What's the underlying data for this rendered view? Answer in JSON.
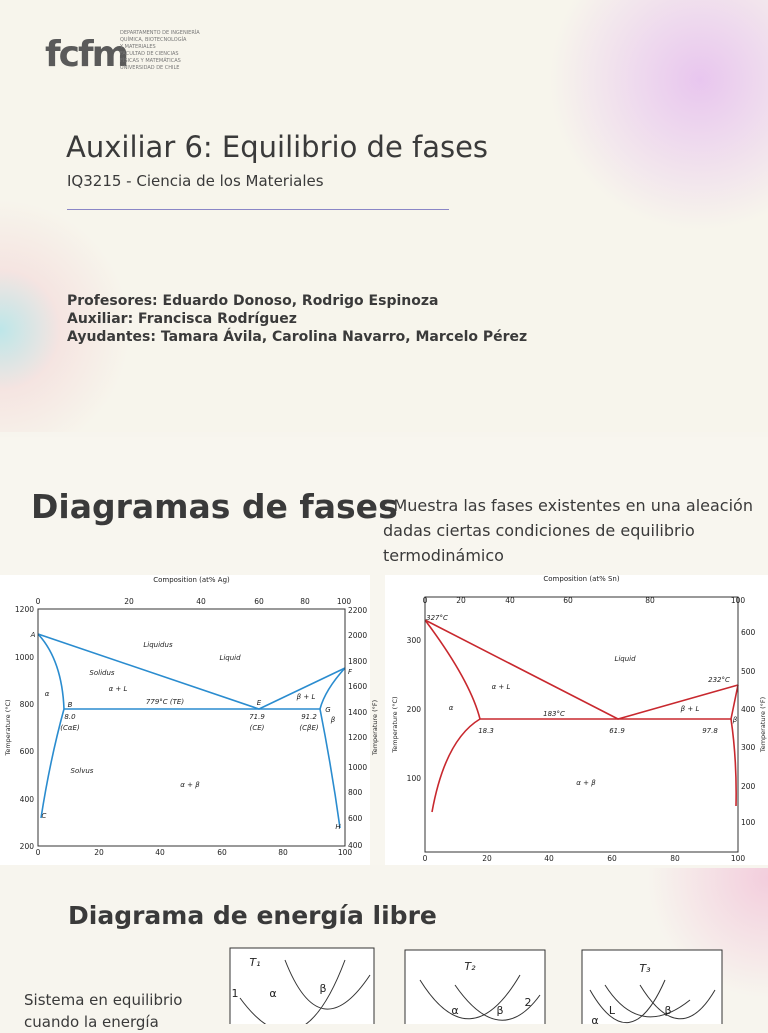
{
  "slide1": {
    "logo": "fcfm",
    "logo_lines": [
      "DEPARTAMENTO DE INGENIERÍA",
      "QUÍMICA, BIOTECNOLOGÍA",
      "Y MATERIALES",
      "FACULTAD DE CIENCIAS",
      "FÍSICAS Y MATEMÁTICAS",
      "UNIVERSIDAD DE CHILE"
    ],
    "title": "Auxiliar 6: Equilibrio de fases",
    "subtitle": "IQ3215 - Ciencia de los Materiales",
    "staff": [
      "Profesores: Eduardo Donoso, Rodrigo Espinoza",
      "Auxiliar: Francisca Rodríguez",
      "Ayudantes: Tamara Ávila, Carolina Navarro, Marcelo Pérez"
    ]
  },
  "slide2": {
    "title": "Diagramas de fases",
    "description": ": Muestra las fases existentes en una aleación dadas ciertas condiciones de equilibrio termodinámico",
    "diagrams": [
      {
        "top_axis": "Composition (at% Ag)",
        "top_ticks": [
          "0",
          "20",
          "40",
          "60",
          "80",
          "100"
        ],
        "bottom_ticks": [
          "0",
          "20",
          "40",
          "60",
          "80",
          "100"
        ],
        "left_axis": "Temperature (°C)",
        "left_ticks": [
          "1200",
          "1000",
          "800",
          "600",
          "400",
          "200"
        ],
        "right_axis": "Temperature (°F)",
        "right_ticks": [
          "2200",
          "2000",
          "1800",
          "1600",
          "1400",
          "1200",
          "1000",
          "800",
          "600",
          "400"
        ],
        "labels": [
          "A",
          "Liquidus",
          "Solidus",
          "Liquid",
          "α + L",
          "β + L",
          "F",
          "B",
          "779°C (TE)",
          "E",
          "G",
          "α",
          "β",
          "8.0",
          "(CαE)",
          "71.9",
          "(CE)",
          "91.2",
          "(CβE)",
          "Solvus",
          "α + β",
          "C",
          "H"
        ]
      },
      {
        "top_axis": "Composition (at% Sn)",
        "top_ticks": [
          "0",
          "20",
          "40",
          "60",
          "80",
          "100"
        ],
        "bottom_ticks": [
          "0",
          "20",
          "40",
          "60",
          "80",
          "100"
        ],
        "left_axis": "Temperature (°C)",
        "left_ticks": [
          "300",
          "200",
          "100"
        ],
        "right_axis": "Temperature (°F)",
        "right_ticks": [
          "600",
          "500",
          "400",
          "300",
          "200",
          "100"
        ],
        "labels": [
          "327°C",
          "Liquid",
          "α + L",
          "β + L",
          "232°C",
          "183°C",
          "α",
          "β",
          "18.3",
          "61.9",
          "97.8",
          "α + β"
        ]
      }
    ]
  },
  "slide3": {
    "title": "Diagrama de energía libre",
    "text": "Sistema en equilibrio cuando la energía",
    "graphs": [
      {
        "temperature": "T₁",
        "labels": [
          "1",
          "α",
          "β"
        ]
      },
      {
        "temperature": "T₂",
        "labels": [
          "α",
          "β",
          "2"
        ]
      },
      {
        "temperature": "T₃",
        "labels": [
          "α",
          "L",
          "β"
        ]
      }
    ]
  }
}
